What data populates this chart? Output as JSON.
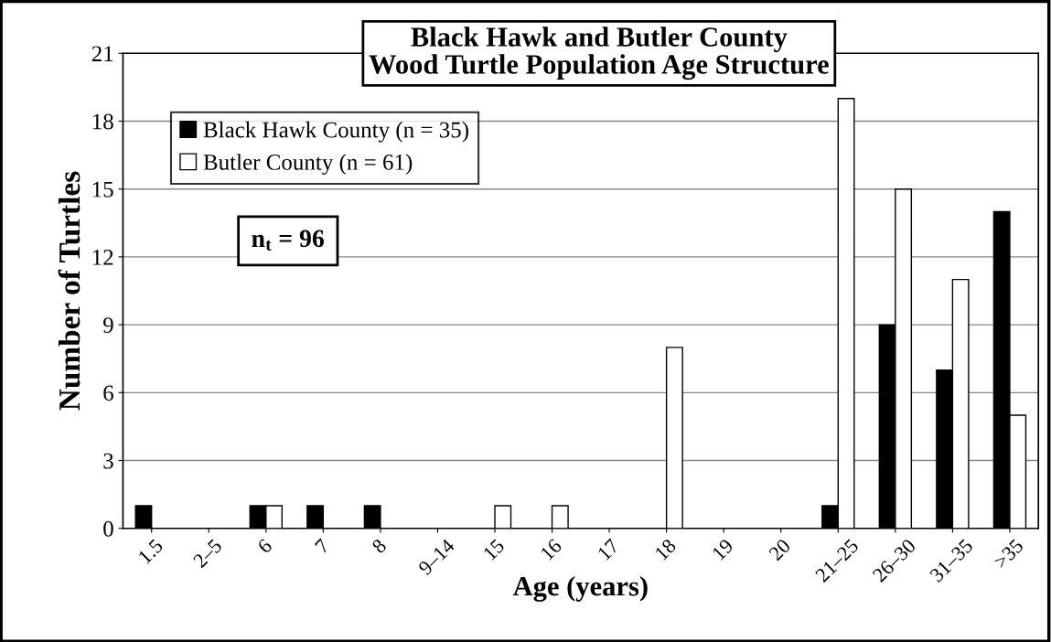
{
  "chart_data": {
    "type": "bar",
    "title": "Black Hawk and Butler County\nWood Turtle Population Age Structure",
    "xlabel": "Age (years)",
    "ylabel": "Number of Turtles",
    "categories": [
      "1.5",
      "2–5",
      "6",
      "7",
      "8",
      "9–14",
      "15",
      "16",
      "17",
      "18",
      "19",
      "20",
      "21–25",
      "26–30",
      "31–35",
      ">35"
    ],
    "series": [
      {
        "name": "Black Hawk County (n = 35)",
        "color": "#000000",
        "values": [
          1,
          0,
          1,
          1,
          1,
          0,
          0,
          0,
          0,
          0,
          0,
          0,
          1,
          9,
          7,
          14
        ]
      },
      {
        "name": "Butler County (n = 61)",
        "color": "#ffffff",
        "values": [
          0,
          0,
          1,
          0,
          0,
          0,
          1,
          1,
          0,
          8,
          0,
          0,
          19,
          15,
          11,
          5
        ]
      }
    ],
    "ylim": [
      0,
      21
    ],
    "yticks": [
      0,
      3,
      6,
      9,
      12,
      15,
      18,
      21
    ],
    "grid": "y",
    "legend": "top left",
    "annotations": [
      "n$_{t}$ = 96"
    ]
  }
}
